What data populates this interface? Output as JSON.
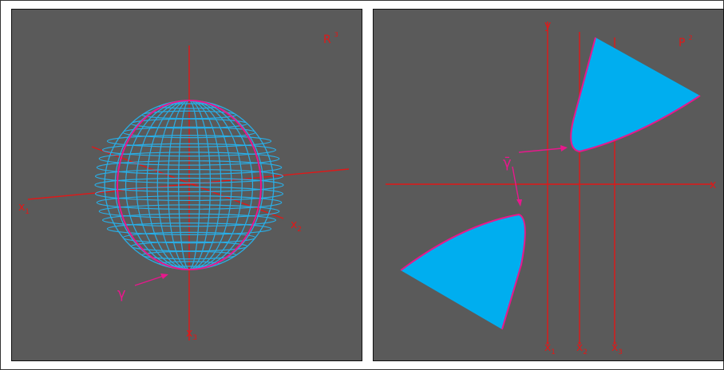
{
  "figure": {
    "left_panel": {
      "space_label": "R",
      "space_sup": "3",
      "axis_x1": "x",
      "axis_x1_sub": "1",
      "axis_x2": "x",
      "axis_x2_sub": "2",
      "axis_x3": "x",
      "axis_x3_sub": "3",
      "curve_label": "γ"
    },
    "right_panel": {
      "space_label": "P",
      "space_sup": "2",
      "axis_x": "x",
      "axis_y": "y",
      "curve_label": "γ̄",
      "xi_1": "x̄",
      "xi_1_sub": "1",
      "xi_2": "x̄",
      "xi_2_sub": "2",
      "xi_3": "x̄",
      "xi_3_sub": "3"
    },
    "colors": {
      "background": "#5a5a5a",
      "axis": "#e01818",
      "sphere": "#29aee6",
      "region": "#00aeef",
      "curve": "#e8188c"
    }
  }
}
